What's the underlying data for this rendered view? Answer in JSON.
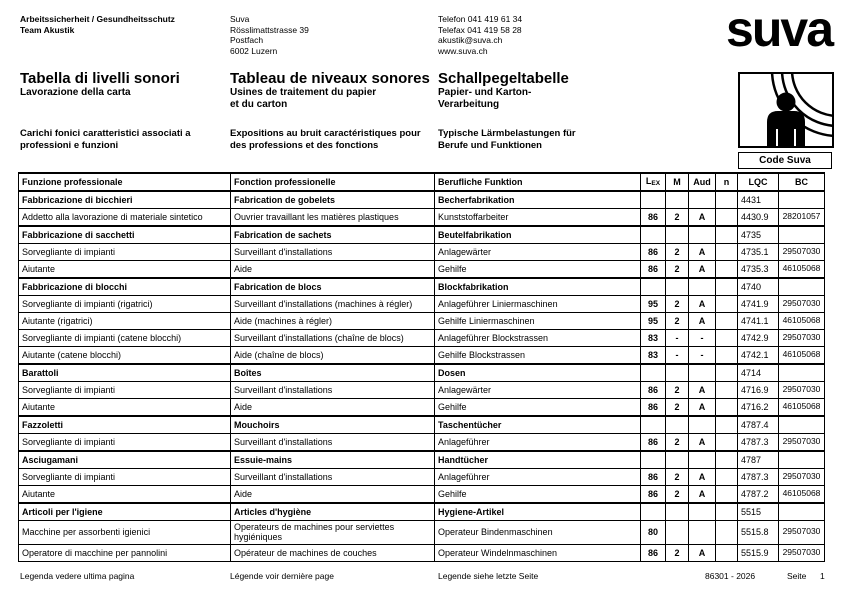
{
  "letterhead": {
    "department": [
      "Arbeitssicherheit / Gesundheitsschutz",
      "Team Akustik"
    ],
    "address": [
      "Suva",
      "Rösslimattstrasse 39",
      "Postfach",
      "6002 Luzern"
    ],
    "contact": [
      "Telefon 041 419 61 34",
      "Telefax 041 419 58 28",
      "akustik@suva.ch",
      "www.suva.ch"
    ],
    "logo_text": "suva"
  },
  "titles": {
    "it": {
      "title": "Tabella di livelli sonori",
      "subtitle": [
        "Lavorazione della carta"
      ],
      "description": [
        "Carichi fonici caratteristici associati a",
        "professioni e funzioni"
      ]
    },
    "fr": {
      "title": "Tableau de niveaux sonores",
      "subtitle": [
        "Usines de traitement du papier",
        "et du carton"
      ],
      "description": [
        "Expositions au bruit caractéristiques pour",
        "des professions et des fonctions"
      ]
    },
    "de": {
      "title": "Schallpegeltabelle",
      "subtitle": [
        "Papier- und Karton-",
        "Verarbeitung"
      ],
      "description": [
        "Typische Lärmbelastungen für",
        "Berufe und Funktionen"
      ]
    }
  },
  "code_box": {
    "label": "Code Suva",
    "icon": "person-noise-exposure-pictogram"
  },
  "table": {
    "columns": [
      "Funzione professionale",
      "Fonction professionelle",
      "Berufliche Funktion",
      "LEX",
      "M",
      "Aud",
      "n",
      "LQC",
      "BC"
    ],
    "rows": [
      {
        "type": "section",
        "cells": [
          "Fabbricazione di bicchieri",
          "Fabrication de gobelets",
          "Becherfabrikation",
          "",
          "",
          "",
          "",
          "4431",
          ""
        ]
      },
      {
        "type": "item",
        "cells": [
          "Addetto alla lavorazione di materiale sintetico",
          "Ouvrier travaillant les matières plastiques",
          "Kunststoffarbeiter",
          "86",
          "2",
          "A",
          "",
          "4430.9",
          "28201057"
        ]
      },
      {
        "type": "section",
        "cells": [
          "Fabbricazione di sacchetti",
          "Fabrication de sachets",
          "Beutelfabrikation",
          "",
          "",
          "",
          "",
          "4735",
          ""
        ]
      },
      {
        "type": "item",
        "cells": [
          "Sorvegliante di impianti",
          "Surveillant d'installations",
          "Anlagewärter",
          "86",
          "2",
          "A",
          "",
          "4735.1",
          "29507030"
        ]
      },
      {
        "type": "item",
        "cells": [
          "Aiutante",
          "Aide",
          "Gehilfe",
          "86",
          "2",
          "A",
          "",
          "4735.3",
          "46105068"
        ]
      },
      {
        "type": "section",
        "cells": [
          "Fabbricazione di blocchi",
          "Fabrication de blocs",
          "Blockfabrikation",
          "",
          "",
          "",
          "",
          "4740",
          ""
        ]
      },
      {
        "type": "item",
        "cells": [
          "Sorvegliante di impianti (rigatrici)",
          "Surveillant d'installations (machines à régler)",
          "Anlageführer Liniermaschinen",
          "95",
          "2",
          "A",
          "",
          "4741.9",
          "29507030"
        ]
      },
      {
        "type": "item",
        "cells": [
          "Aiutante (rigatrici)",
          "Aide (machines à régler)",
          "Gehilfe Liniermaschinen",
          "95",
          "2",
          "A",
          "",
          "4741.1",
          "46105068"
        ]
      },
      {
        "type": "item",
        "cells": [
          "Sorvegliante di impianti (catene blocchi)",
          "Surveillant d'installations (chaîne de blocs)",
          "Anlageführer Blockstrassen",
          "83",
          "-",
          "-",
          "",
          "4742.9",
          "29507030"
        ]
      },
      {
        "type": "item",
        "cells": [
          "Aiutante (catene blocchi)",
          "Aide (chaîne de blocs)",
          "Gehilfe Blockstrassen",
          "83",
          "-",
          "-",
          "",
          "4742.1",
          "46105068"
        ]
      },
      {
        "type": "section",
        "cells": [
          "Barattoli",
          "Boîtes",
          "Dosen",
          "",
          "",
          "",
          "",
          "4714",
          ""
        ]
      },
      {
        "type": "item",
        "cells": [
          "Sorvegliante di impianti",
          "Surveillant d'installations",
          "Anlagewärter",
          "86",
          "2",
          "A",
          "",
          "4716.9",
          "29507030"
        ]
      },
      {
        "type": "item",
        "cells": [
          "Aiutante",
          "Aide",
          "Gehilfe",
          "86",
          "2",
          "A",
          "",
          "4716.2",
          "46105068"
        ]
      },
      {
        "type": "section",
        "cells": [
          "Fazzoletti",
          "Mouchoirs",
          "Taschentücher",
          "",
          "",
          "",
          "",
          "4787.4",
          ""
        ]
      },
      {
        "type": "item",
        "cells": [
          "Sorvegliante di impianti",
          "Surveillant d'installations",
          "Anlageführer",
          "86",
          "2",
          "A",
          "",
          "4787.3",
          "29507030"
        ]
      },
      {
        "type": "section",
        "cells": [
          "Asciugamani",
          "Essuie-mains",
          "Handtücher",
          "",
          "",
          "",
          "",
          "4787",
          ""
        ]
      },
      {
        "type": "item",
        "cells": [
          "Sorvegliante di impianti",
          "Surveillant d'installations",
          "Anlageführer",
          "86",
          "2",
          "A",
          "",
          "4787.3",
          "29507030"
        ]
      },
      {
        "type": "item",
        "cells": [
          "Aiutante",
          "Aide",
          "Gehilfe",
          "86",
          "2",
          "A",
          "",
          "4787.2",
          "46105068"
        ]
      },
      {
        "type": "section",
        "cells": [
          "Articoli per l'igiene",
          "Articles d'hygiène",
          "Hygiene-Artikel",
          "",
          "",
          "",
          "",
          "5515",
          ""
        ]
      },
      {
        "type": "item",
        "cells": [
          "Macchine per assorbenti igienici",
          "Operateurs de machines pour serviettes hygiéniques",
          "Operateur Bindenmaschinen",
          "80",
          "",
          "",
          "",
          "5515.8",
          "29507030"
        ]
      },
      {
        "type": "item",
        "cells": [
          "Operatore di macchine per pannolini",
          "Opérateur de machines de couches",
          "Operateur Windelnmaschinen",
          "86",
          "2",
          "A",
          "",
          "5515.9",
          "29507030"
        ]
      }
    ]
  },
  "footer": {
    "legend_it": "Legenda vedere ultima pagina",
    "legend_fr": "Légende voir dernière page",
    "legend_de": "Legende siehe letzte Seite",
    "doc_number": "86301 - 2026",
    "page_label": "Seite",
    "page_number": "1"
  }
}
